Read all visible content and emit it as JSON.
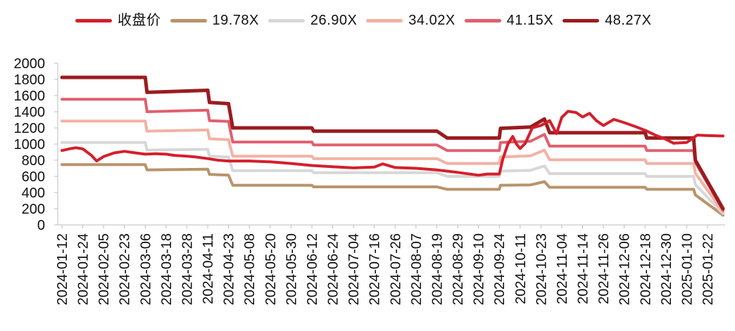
{
  "chart_data": {
    "type": "line",
    "title": "",
    "xlabel": "",
    "ylabel": "",
    "ylim": [
      0,
      2000
    ],
    "yticks": [
      0,
      200,
      400,
      600,
      800,
      1000,
      1200,
      1400,
      1600,
      1800,
      2000
    ],
    "grid": false,
    "legend_position": "top",
    "x_tick_labels": [
      "2024-01-12",
      "2024-01-24",
      "2024-02-05",
      "2024-02-23",
      "2024-03-06",
      "2024-03-18",
      "2024-03-28",
      "2024-04-11",
      "2024-04-23",
      "2024-05-08",
      "2024-05-20",
      "2024-05-30",
      "2024-06-12",
      "2024-06-24",
      "2024-07-04",
      "2024-07-16",
      "2024-07-26",
      "2024-08-07",
      "2024-08-19",
      "2024-08-29",
      "2024-09-10",
      "2024-09-24",
      "2024-10-11",
      "2024-10-23",
      "2024-11-04",
      "2024-11-14",
      "2024-11-26",
      "2024-12-06",
      "2024-12-18",
      "2024-12-30",
      "2025-01-10",
      "2025-01-22"
    ],
    "series": [
      {
        "name": "19.78X",
        "color": "#b9936a",
        "stroke": 4,
        "x": [
          "2024-01-12",
          "2024-03-06",
          "2024-03-07",
          "2024-04-11",
          "2024-04-12",
          "2024-04-23",
          "2024-04-26",
          "2024-06-12",
          "2024-06-13",
          "2024-08-19",
          "2024-08-24",
          "2024-09-24",
          "2024-09-25",
          "2024-10-17",
          "2024-10-25",
          "2024-10-28",
          "2024-12-18",
          "2024-12-19",
          "2025-01-14",
          "2025-01-15",
          "2025-01-27"
        ],
        "values": [
          745,
          745,
          680,
          690,
          625,
          615,
          490,
          490,
          470,
          470,
          440,
          440,
          490,
          495,
          535,
          465,
          465,
          440,
          440,
          370,
          120
        ]
      },
      {
        "name": "26.90X",
        "color": "#d7d7d7",
        "stroke": 4,
        "x": [
          "2024-01-12",
          "2024-03-06",
          "2024-03-07",
          "2024-04-11",
          "2024-04-12",
          "2024-04-23",
          "2024-04-26",
          "2024-06-12",
          "2024-06-13",
          "2024-08-19",
          "2024-08-24",
          "2024-09-24",
          "2024-09-25",
          "2024-10-17",
          "2024-10-25",
          "2024-10-28",
          "2024-12-18",
          "2024-12-19",
          "2025-01-14",
          "2025-01-15",
          "2025-01-27"
        ],
        "values": [
          1020,
          1020,
          925,
          935,
          850,
          840,
          670,
          670,
          645,
          645,
          600,
          600,
          665,
          675,
          730,
          635,
          635,
          600,
          600,
          500,
          140
        ]
      },
      {
        "name": "34.02X",
        "color": "#f2b2a3",
        "stroke": 4,
        "x": [
          "2024-01-12",
          "2024-03-06",
          "2024-03-07",
          "2024-04-11",
          "2024-04-12",
          "2024-04-23",
          "2024-04-26",
          "2024-06-12",
          "2024-06-13",
          "2024-08-19",
          "2024-08-24",
          "2024-09-24",
          "2024-09-25",
          "2024-10-17",
          "2024-10-25",
          "2024-10-28",
          "2024-12-18",
          "2024-12-19",
          "2025-01-14",
          "2025-01-15",
          "2025-01-27"
        ],
        "values": [
          1285,
          1285,
          1160,
          1175,
          1065,
          1055,
          850,
          850,
          820,
          820,
          760,
          760,
          840,
          855,
          925,
          805,
          805,
          760,
          760,
          640,
          160
        ]
      },
      {
        "name": "41.15X",
        "color": "#e06070",
        "stroke": 4,
        "x": [
          "2024-01-12",
          "2024-03-06",
          "2024-03-07",
          "2024-04-11",
          "2024-04-12",
          "2024-04-23",
          "2024-04-26",
          "2024-06-12",
          "2024-06-13",
          "2024-08-19",
          "2024-08-24",
          "2024-09-24",
          "2024-09-25",
          "2024-10-17",
          "2024-10-25",
          "2024-10-28",
          "2024-12-18",
          "2024-12-19",
          "2025-01-14",
          "2025-01-15",
          "2025-01-27"
        ],
        "values": [
          1555,
          1555,
          1400,
          1420,
          1290,
          1280,
          1025,
          1025,
          990,
          990,
          920,
          920,
          1020,
          1035,
          1120,
          975,
          975,
          920,
          920,
          775,
          180
        ]
      },
      {
        "name": "48.27X",
        "color": "#9b1c1f",
        "stroke": 5,
        "x": [
          "2024-01-12",
          "2024-03-06",
          "2024-03-07",
          "2024-04-11",
          "2024-04-12",
          "2024-04-23",
          "2024-04-26",
          "2024-06-12",
          "2024-06-13",
          "2024-08-19",
          "2024-08-24",
          "2024-09-24",
          "2024-09-25",
          "2024-10-17",
          "2024-10-25",
          "2024-10-28",
          "2024-12-18",
          "2024-12-19",
          "2025-01-14",
          "2025-01-15",
          "2025-01-27"
        ],
        "values": [
          1825,
          1825,
          1640,
          1665,
          1515,
          1500,
          1200,
          1200,
          1160,
          1160,
          1075,
          1075,
          1195,
          1210,
          1310,
          1140,
          1140,
          1075,
          1075,
          800,
          200
        ]
      },
      {
        "name": "收盘价",
        "color": "#d41f2b",
        "stroke": 4,
        "x": [
          "2024-01-12",
          "2024-01-16",
          "2024-01-20",
          "2024-01-24",
          "2024-01-29",
          "2024-02-01",
          "2024-02-05",
          "2024-02-14",
          "2024-02-23",
          "2024-02-28",
          "2024-03-06",
          "2024-03-12",
          "2024-03-18",
          "2024-03-22",
          "2024-03-28",
          "2024-04-03",
          "2024-04-11",
          "2024-04-17",
          "2024-04-23",
          "2024-05-08",
          "2024-05-20",
          "2024-05-30",
          "2024-06-12",
          "2024-06-24",
          "2024-07-04",
          "2024-07-16",
          "2024-07-20",
          "2024-07-26",
          "2024-08-07",
          "2024-08-19",
          "2024-08-29",
          "2024-09-10",
          "2024-09-16",
          "2024-09-24",
          "2024-09-27",
          "2024-10-01",
          "2024-10-05",
          "2024-10-08",
          "2024-10-11",
          "2024-10-14",
          "2024-10-18",
          "2024-10-23",
          "2024-10-28",
          "2024-11-01",
          "2024-11-04",
          "2024-11-07",
          "2024-11-11",
          "2024-11-14",
          "2024-11-18",
          "2024-11-22",
          "2024-11-26",
          "2024-12-01",
          "2024-12-06",
          "2024-12-12",
          "2024-12-18",
          "2024-12-24",
          "2024-12-30",
          "2025-01-03",
          "2025-01-10",
          "2025-01-16",
          "2025-01-22",
          "2025-01-27"
        ],
        "values": [
          920,
          940,
          955,
          940,
          860,
          790,
          845,
          890,
          910,
          895,
          875,
          880,
          875,
          860,
          850,
          840,
          820,
          800,
          790,
          790,
          780,
          760,
          735,
          720,
          705,
          715,
          755,
          710,
          700,
          680,
          650,
          615,
          630,
          630,
          820,
          1000,
          1095,
          1000,
          945,
          1010,
          1200,
          1230,
          1290,
          1130,
          1330,
          1405,
          1390,
          1335,
          1380,
          1290,
          1230,
          1305,
          1265,
          1220,
          1170,
          1110,
          1060,
          1010,
          1020,
          1110,
          1105,
          1100
        ]
      }
    ]
  },
  "legend": [
    {
      "label": "收盘价",
      "color": "#d41f2b"
    },
    {
      "label": "19.78X",
      "color": "#b9936a"
    },
    {
      "label": "26.90X",
      "color": "#d7d7d7"
    },
    {
      "label": "34.02X",
      "color": "#f2b2a3"
    },
    {
      "label": "41.15X",
      "color": "#e06070"
    },
    {
      "label": "48.27X",
      "color": "#9b1c1f"
    }
  ]
}
